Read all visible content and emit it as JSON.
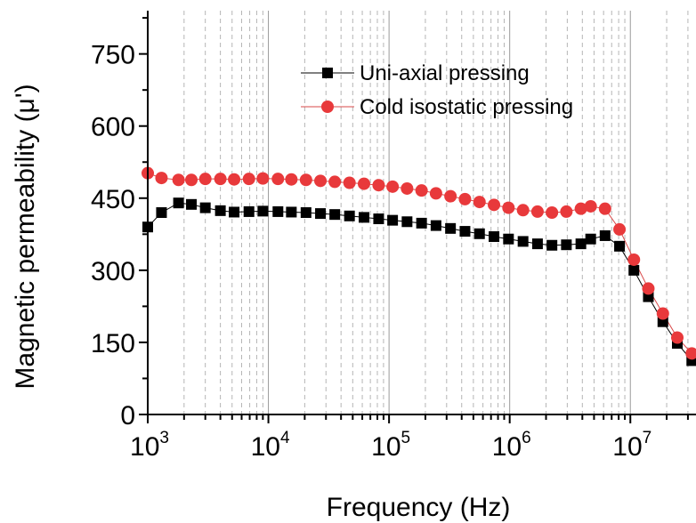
{
  "chart_data": {
    "type": "scatter",
    "x_scale": "log",
    "xlabel": "Frequency (Hz)",
    "ylabel": "Magnetic permeability (μ')",
    "xlim": [
      1000,
      35000000
    ],
    "ylim": [
      0,
      840
    ],
    "x_ticks": [
      {
        "value": 1000,
        "base": "10",
        "exp": "3"
      },
      {
        "value": 10000,
        "base": "10",
        "exp": "4"
      },
      {
        "value": 100000,
        "base": "10",
        "exp": "5"
      },
      {
        "value": 1000000,
        "base": "10",
        "exp": "6"
      },
      {
        "value": 10000000,
        "base": "10",
        "exp": "7"
      }
    ],
    "y_ticks": [
      0,
      150,
      300,
      450,
      600,
      750
    ],
    "grid": "vertical log gridlines (solid at decades, dashed minor)",
    "legend_position": "top-right",
    "series": [
      {
        "name": "Uni-axial pressing",
        "marker": "square",
        "color": "#000000",
        "x": [
          1000,
          1300,
          1800,
          2300,
          3000,
          4000,
          5200,
          6900,
          9000,
          12000,
          15500,
          20500,
          27000,
          35500,
          47000,
          62000,
          82000,
          107000,
          141000,
          186000,
          245000,
          323000,
          426000,
          562000,
          741000,
          977000,
          1290000,
          1700000,
          2240000,
          2950000,
          3890000,
          4690000,
          6170000,
          8130000,
          10700000,
          14100000,
          18600000,
          24500000,
          32300000
        ],
        "y": [
          390,
          420,
          440,
          437,
          430,
          424,
          421,
          422,
          423,
          422,
          421,
          420,
          418,
          416,
          413,
          410,
          407,
          404,
          401,
          398,
          393,
          387,
          381,
          376,
          370,
          365,
          360,
          355,
          352,
          353,
          355,
          365,
          372,
          350,
          300,
          245,
          193,
          148,
          112
        ]
      },
      {
        "name": "Cold isostatic pressing",
        "marker": "circle",
        "color": "#e8393b",
        "x": [
          1000,
          1300,
          1800,
          2300,
          3000,
          4000,
          5200,
          6900,
          9000,
          12000,
          15500,
          20500,
          27000,
          35500,
          47000,
          62000,
          82000,
          107000,
          141000,
          186000,
          245000,
          323000,
          426000,
          562000,
          741000,
          977000,
          1290000,
          1700000,
          2240000,
          2950000,
          3890000,
          4690000,
          6170000,
          8130000,
          10700000,
          14100000,
          18600000,
          24500000,
          32300000
        ],
        "y": [
          502,
          492,
          488,
          488,
          490,
          490,
          489,
          490,
          491,
          490,
          489,
          488,
          486,
          484,
          482,
          480,
          477,
          474,
          470,
          466,
          460,
          454,
          448,
          442,
          436,
          430,
          425,
          422,
          420,
          422,
          428,
          433,
          428,
          385,
          322,
          262,
          210,
          160,
          127
        ]
      }
    ]
  }
}
